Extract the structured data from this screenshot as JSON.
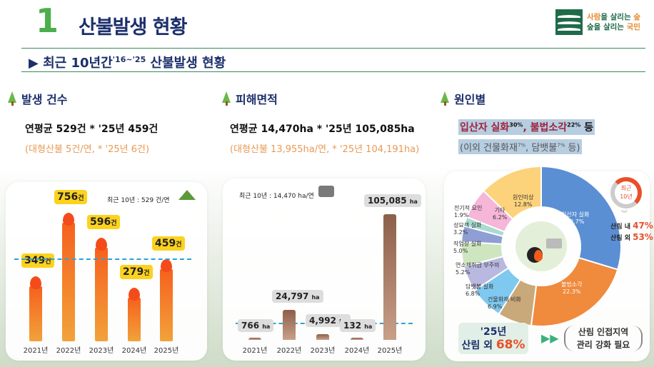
{
  "header": {
    "number": "1",
    "title": "산불발생 현황",
    "logo_line1a": "사람",
    "logo_line1b": "을 살리는 ",
    "logo_line1c": "숲",
    "logo_line2a": "숲을 살리는 ",
    "logo_line2b": "국민"
  },
  "subtitle": {
    "text": "▶ 최근 10년간",
    "sup1": "'16~'25",
    "rest": " 산불발생 현황"
  },
  "sections": [
    {
      "title": "발생 건수",
      "line1": "연평균 529건  * '25년 459건",
      "line2": "(대형산불 5건/연,  * '25년 6건)"
    },
    {
      "title": "피해면적",
      "line1": "연평균 14,470ha  * '25년 105,085ha",
      "line2": "(대형산불 13,955ha/연,  * '25년 104,191ha)"
    },
    {
      "title": "원인별",
      "line1a": "입산자 실화",
      "sup1": "30%",
      "line1b": ", 불법소각",
      "sup2": "22%",
      "line1c": " 등",
      "line2a": "(이외 건물화재",
      "sup3": "7%",
      "line2b": ", 담뱃불",
      "sup4": "7%",
      "line2c": " 등)"
    }
  ],
  "chart_data": [
    {
      "type": "bar",
      "title": "발생 건수",
      "note": "최근 10년 : 529 건/연",
      "unit": "건",
      "categories": [
        "2021년",
        "2022년",
        "2023년",
        "2024년",
        "2025년"
      ],
      "values": [
        349,
        756,
        596,
        279,
        459
      ],
      "average": 529,
      "ylim": [
        0,
        800
      ]
    },
    {
      "type": "bar",
      "title": "피해면적",
      "note": "최근 10년 : 14,470 ha/연",
      "unit": "ha",
      "categories": [
        "2021년",
        "2022년",
        "2023년",
        "2024년",
        "2025년"
      ],
      "values": [
        766,
        24797,
        4992,
        132,
        105085
      ],
      "value_labels": [
        "766",
        "24,797",
        "4,992",
        "132",
        "105,085"
      ],
      "average": 14470,
      "ylim": [
        0,
        110000
      ]
    },
    {
      "type": "pie",
      "title": "원인별",
      "labels": [
        "입산자 실화",
        "불법소각",
        "건물화재 비화",
        "담뱃불 실화",
        "연소재취급 부주의",
        "작업장 실화",
        "성묘객 실화",
        "전기적 요인",
        "기타",
        "원인미상"
      ],
      "values": [
        29.7,
        22.3,
        6.9,
        6.8,
        5.2,
        5.0,
        3.2,
        1.9,
        6.2,
        12.8
      ],
      "value_labels": [
        "29.7%",
        "22.3%",
        "6.9%",
        "6.8%",
        "5.2%",
        "5.0%",
        "3.2%",
        "1.9%",
        "6.2%",
        "12.8%"
      ],
      "colors": [
        "#5b8fd4",
        "#f08a3c",
        "#c9a87a",
        "#7fc8ef",
        "#b9b8e0",
        "#cde6c0",
        "#8f9fd3",
        "#a8dcd0",
        "#f5b6d8",
        "#fcd27a"
      ]
    }
  ],
  "side": {
    "badge1": "최근",
    "badge2": "10년",
    "in_label": "산림 내 ",
    "in_val": "47%",
    "out_label": "산림 외 ",
    "out_val": "53%"
  },
  "callout": {
    "year": "'25년",
    "label": "산림 외 ",
    "value": "68%",
    "need1": "산림 인접지역",
    "need2": "관리 강화 필요"
  },
  "colors": {
    "green": "#4cae4c",
    "navy": "#1c2f6b",
    "orange": "#e89a55",
    "red": "#e8502a"
  }
}
